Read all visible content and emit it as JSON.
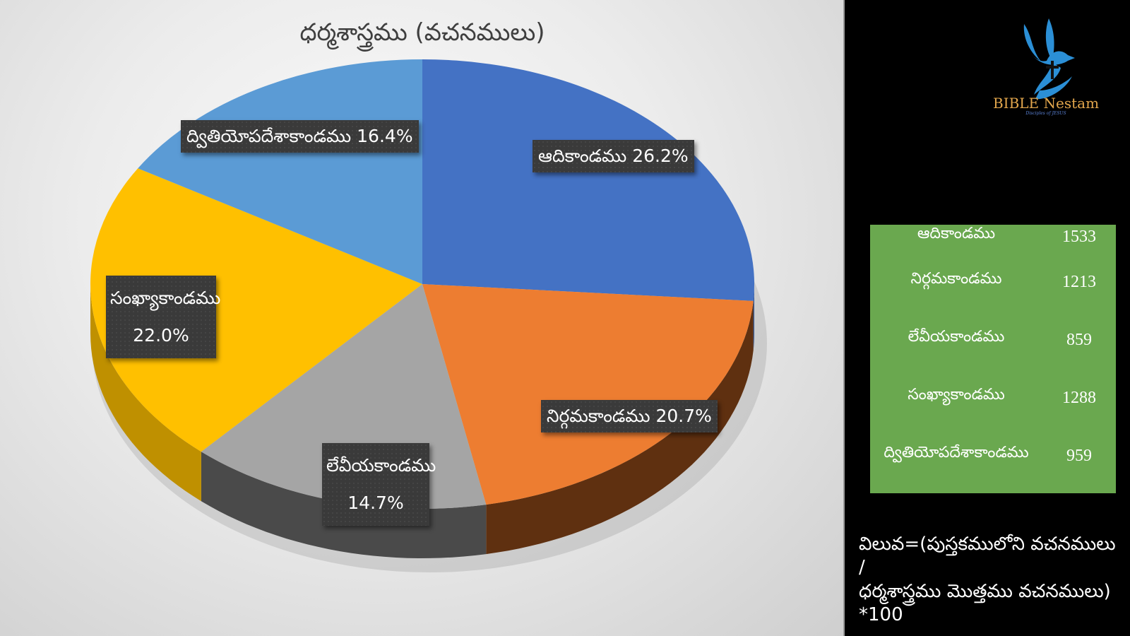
{
  "chart_data": {
    "type": "pie",
    "style": "3d-pie",
    "title": "ధర్మశాస్త్రము (వచనములు)",
    "categories": [
      "ఆదికాండము",
      "నిర్గమకాండము",
      "లేవీయకాండము",
      "సంఖ్యాకాండము",
      "ద్వితియోపదేశాకాండము"
    ],
    "values": [
      1533,
      1213,
      859,
      1288,
      959
    ],
    "percentages": [
      26.2,
      20.7,
      14.7,
      22.0,
      16.4
    ],
    "percent_labels": [
      "26.2%",
      "20.7%",
      "14.7%",
      "22.0%",
      "16.4%"
    ],
    "colors": [
      "#4472c4",
      "#ed7d31",
      "#a5a5a5",
      "#ffc000",
      "#5b9bd5"
    ],
    "side_colors": [
      "#2f5597",
      "#5f3010",
      "#4a4a4a",
      "#bf9000",
      "#2e75b6"
    ],
    "start_angle": 0,
    "direction": "clockwise",
    "legend": "none",
    "data_labels": "category and percentage, dark callout boxes"
  },
  "chart": {
    "title": "ధర్మశాస్త్రము (వచనములు)",
    "labels": [
      {
        "name": "ఆదికాండము",
        "pct": "26.2%"
      },
      {
        "name": "నిర్గమకాండము",
        "pct": "20.7%"
      },
      {
        "name": "లేవీయకాండము",
        "pct": "14.7%"
      },
      {
        "name": "సంఖ్యాకాండము",
        "pct": "22.0%"
      },
      {
        "name": "ద్వితియోపదేశాకాండము",
        "pct": "16.4%"
      }
    ]
  },
  "logo": {
    "title": "BIBLE Nestam",
    "subtitle": "Disciples of JESUS",
    "dove_color": "#2b8fd6",
    "title_color": "#e2a64c"
  },
  "table": {
    "background": "#6aa84f",
    "rows": [
      {
        "name": "ఆదికాండము",
        "value": "1533"
      },
      {
        "name": "నిర్గమకాండము",
        "value": "1213"
      },
      {
        "name": "లేవీయకాండము",
        "value": "859"
      },
      {
        "name": "సంఖ్యాకాండము",
        "value": "1288"
      },
      {
        "name": "ద్వితియోపదేశాకాండము",
        "value": "959"
      }
    ]
  },
  "formula": {
    "line1": "విలువ=(పుస్తకములోని వచనములు /",
    "line2": "ధర్మశాస్త్రము మొత్తము వచనములు)",
    "line3": "*100"
  }
}
